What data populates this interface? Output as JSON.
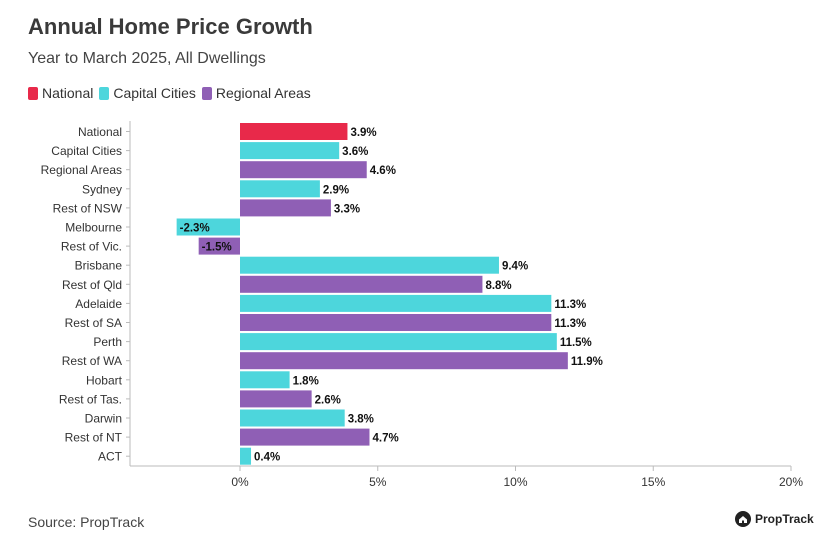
{
  "title": "Annual Home Price Growth",
  "subtitle": "Year to March 2025, All Dwellings",
  "legend": [
    {
      "name": "National",
      "color": "#e8294a"
    },
    {
      "name": "Capital Cities",
      "color": "#4dd6dc"
    },
    {
      "name": "Regional Areas",
      "color": "#8f5fb5"
    }
  ],
  "source": "Source: PropTrack",
  "brand": "PropTrack",
  "brand_icon": "house-logo-icon",
  "chart_data": {
    "type": "bar",
    "orientation": "horizontal",
    "categories": [
      "National",
      "Capital Cities",
      "Regional Areas",
      "Sydney",
      "Rest of NSW",
      "Melbourne",
      "Rest of Vic.",
      "Brisbane",
      "Rest of Qld",
      "Adelaide",
      "Rest of SA",
      "Perth",
      "Rest of WA",
      "Hobart",
      "Rest of Tas.",
      "Darwin",
      "Rest of NT",
      "ACT"
    ],
    "values": [
      3.9,
      3.6,
      4.6,
      2.9,
      3.3,
      -2.3,
      -1.5,
      9.4,
      8.8,
      11.3,
      11.3,
      11.5,
      11.9,
      1.8,
      2.6,
      3.8,
      4.7,
      0.4
    ],
    "groups": [
      "National",
      "Capital Cities",
      "Regional Areas",
      "Capital Cities",
      "Regional Areas",
      "Capital Cities",
      "Regional Areas",
      "Capital Cities",
      "Regional Areas",
      "Capital Cities",
      "Regional Areas",
      "Capital Cities",
      "Regional Areas",
      "Capital Cities",
      "Regional Areas",
      "Capital Cities",
      "Regional Areas",
      "Capital Cities"
    ],
    "data_labels": [
      "3.9%",
      "3.6%",
      "4.6%",
      "2.9%",
      "3.3%",
      "-2.3%",
      "-1.5%",
      "9.4%",
      "8.8%",
      "11.3%",
      "11.3%",
      "11.5%",
      "11.9%",
      "1.8%",
      "2.6%",
      "3.8%",
      "4.7%",
      "0.4%"
    ],
    "xlim": [
      -4,
      20
    ],
    "xticks": [
      0,
      5,
      10,
      15,
      20
    ],
    "xtick_labels": [
      "0%",
      "5%",
      "10%",
      "15%",
      "20%"
    ],
    "grid": false,
    "legend_position": "top-left"
  }
}
